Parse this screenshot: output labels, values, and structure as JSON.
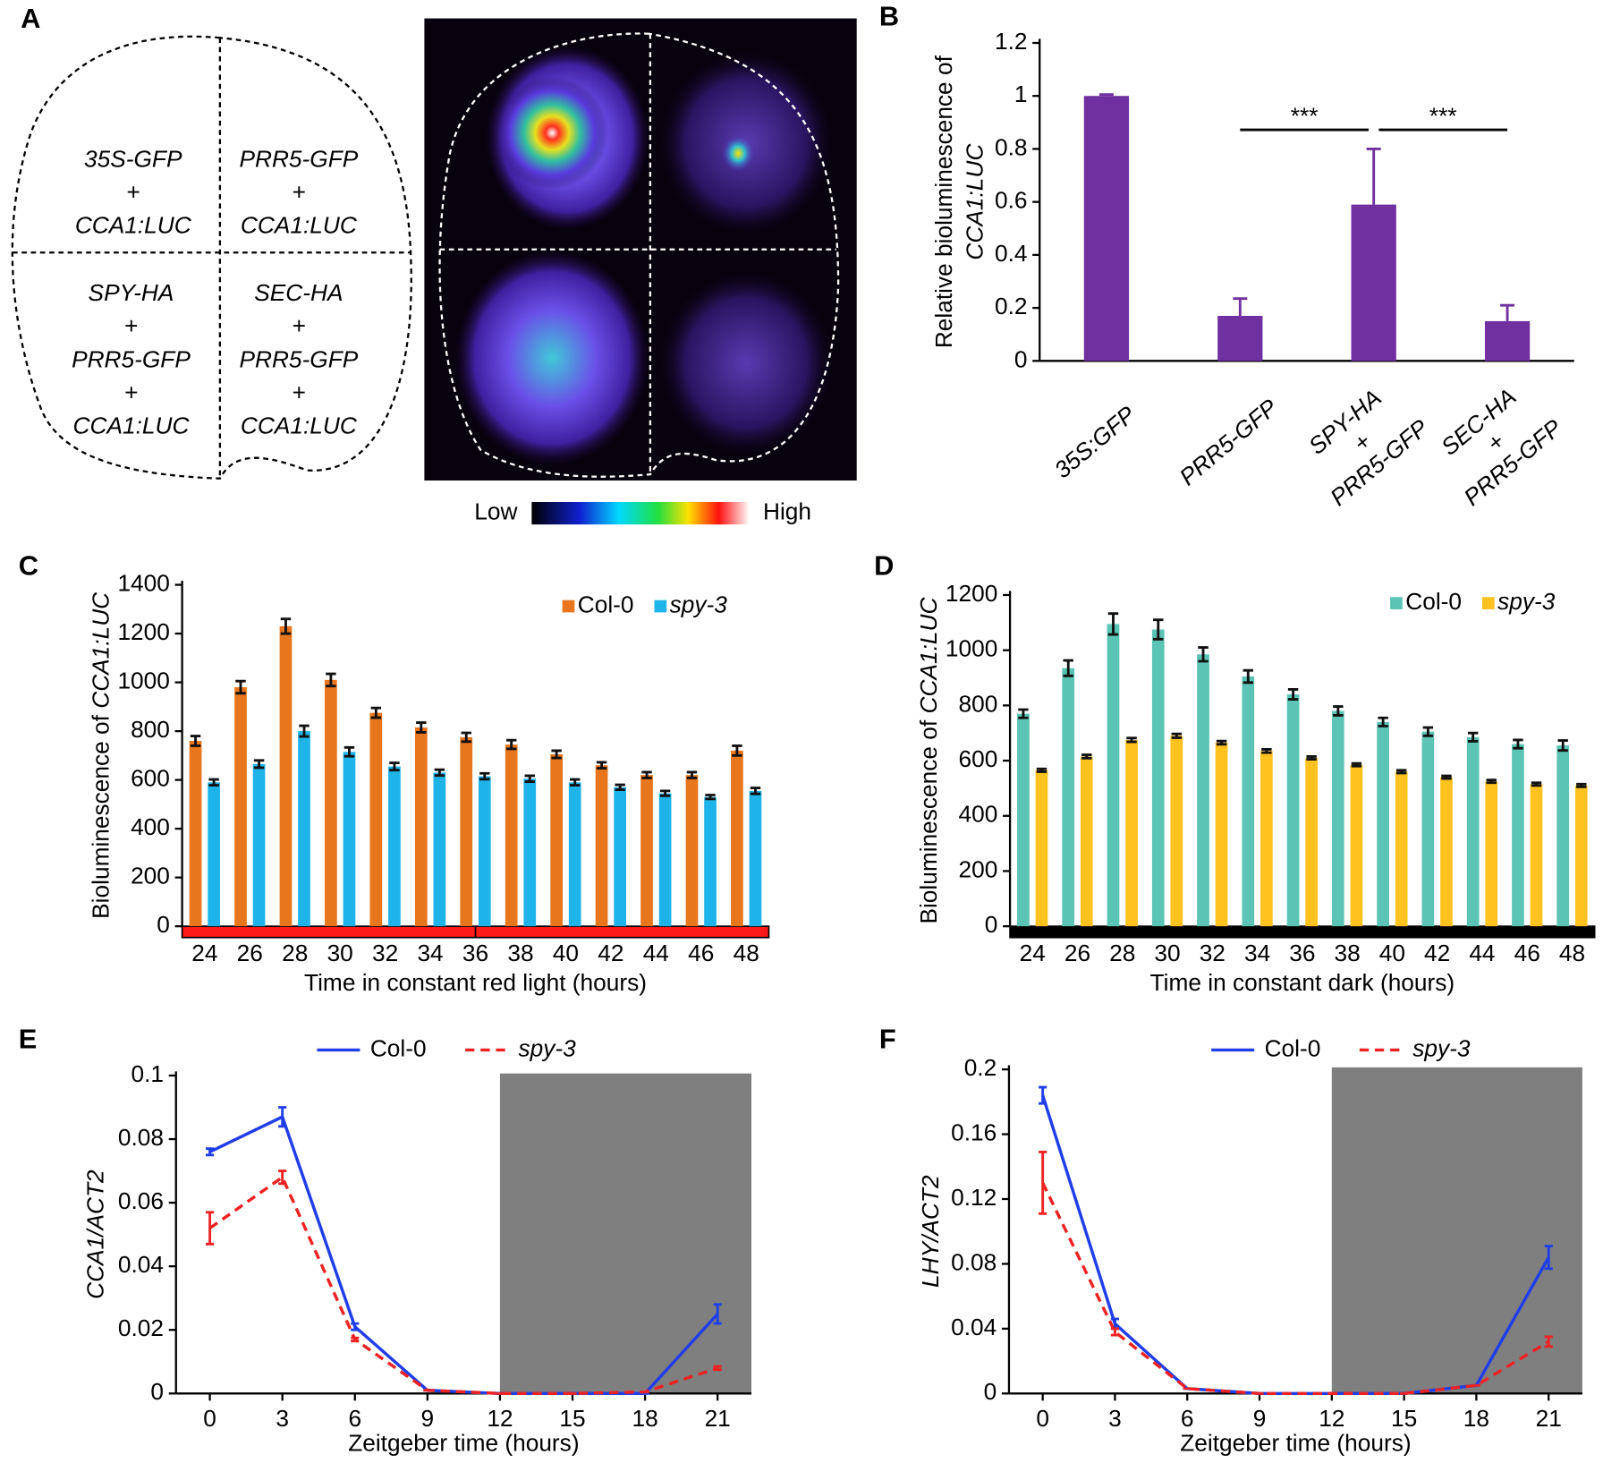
{
  "panel_labels": [
    "A",
    "B",
    "C",
    "D",
    "E",
    "F"
  ],
  "panel_a": {
    "cells": [
      [
        "35S-GFP",
        "+",
        "CCA1:LUC"
      ],
      [
        "PRR5-GFP",
        "+",
        "CCA1:LUC"
      ],
      [
        "SPY-HA",
        "+",
        "PRR5-GFP",
        "+",
        "CCA1:LUC"
      ],
      [
        "SEC-HA",
        "+",
        "PRR5-GFP",
        "+",
        "CCA1:LUC"
      ]
    ],
    "colorbar": {
      "low": "Low",
      "high": "High"
    }
  },
  "chart_data": [
    {
      "type": "bar",
      "y_label": [
        "Relative bioluminescence of",
        "CCA1:LUC"
      ],
      "categories": [
        [
          "35S:GFP"
        ],
        [
          "PRR5-GFP"
        ],
        [
          "SPY-HA",
          "+",
          "PRR5-GFP"
        ],
        [
          "SEC-HA",
          "+",
          "PRR5-GFP"
        ]
      ],
      "values": [
        1,
        0.17,
        0.59,
        0.15
      ],
      "errors": [
        0.005,
        0.065,
        0.21,
        0.06
      ],
      "color": "#7030a0",
      "ylim": [
        0,
        1.2
      ],
      "yticks": [
        0,
        0.2,
        0.4,
        0.6,
        0.8,
        1,
        1.2
      ],
      "annotations": [
        "***",
        "***"
      ]
    },
    {
      "type": "bar",
      "y_label": [
        "Bioluminescence of",
        "CCA1:LUC"
      ],
      "x_label": "Time in constant red light (hours)",
      "categories": [
        "24",
        "26",
        "28",
        "30",
        "32",
        "34",
        "36",
        "38",
        "40",
        "42",
        "44",
        "46",
        "48"
      ],
      "series": [
        {
          "name": "Col-0",
          "color": "#e8761c",
          "values": [
            760,
            980,
            1230,
            1010,
            875,
            815,
            775,
            745,
            705,
            660,
            620,
            620,
            720
          ],
          "errors": [
            20,
            25,
            30,
            25,
            20,
            20,
            18,
            18,
            15,
            12,
            12,
            12,
            20
          ]
        },
        {
          "name": "spy-3",
          "color": "#1eb4ea",
          "values": [
            590,
            665,
            800,
            715,
            655,
            630,
            615,
            605,
            590,
            570,
            545,
            530,
            555
          ],
          "errors": [
            12,
            15,
            22,
            18,
            15,
            12,
            12,
            12,
            12,
            10,
            10,
            8,
            12
          ]
        }
      ],
      "ylim": [
        0,
        1400
      ],
      "yticks": [
        0,
        200,
        400,
        600,
        800,
        1000,
        1200,
        1400
      ],
      "bottom_bar": "#ff1a1a"
    },
    {
      "type": "bar",
      "y_label": [
        "Bioluminescence of",
        "CCA1:LUC"
      ],
      "x_label": "Time in constant dark (hours)",
      "categories": [
        "24",
        "26",
        "28",
        "30",
        "32",
        "34",
        "36",
        "38",
        "40",
        "42",
        "44",
        "46",
        "48"
      ],
      "series": [
        {
          "name": "Col-0",
          "color": "#5bc4b4",
          "values": [
            770,
            935,
            1095,
            1075,
            985,
            905,
            840,
            780,
            740,
            705,
            685,
            660,
            655
          ],
          "errors": [
            15,
            28,
            38,
            35,
            25,
            22,
            18,
            16,
            15,
            15,
            15,
            15,
            18
          ]
        },
        {
          "name": "spy-3",
          "color": "#ffc21e",
          "values": [
            565,
            615,
            675,
            690,
            665,
            635,
            610,
            585,
            560,
            540,
            525,
            515,
            510
          ],
          "errors": [
            5,
            6,
            7,
            7,
            6,
            6,
            5,
            5,
            5,
            5,
            5,
            5,
            5
          ]
        }
      ],
      "ylim": [
        0,
        1200
      ],
      "yticks": [
        0,
        200,
        400,
        600,
        800,
        1000,
        1200
      ],
      "bottom_bar": "#000000"
    },
    {
      "type": "line",
      "y_label": "CCA1/ACT2",
      "x_label": "Zeitgeber time (hours)",
      "x": [
        0,
        3,
        6,
        9,
        12,
        15,
        18,
        21
      ],
      "series": [
        {
          "name": "Col-0",
          "color": "#1f3de8",
          "dash": false,
          "values": [
            0.076,
            0.087,
            0.021,
            0.001,
            0,
            0,
            0,
            0.025
          ],
          "errors": [
            0.001,
            0.003,
            0.001,
            0,
            0,
            0,
            0,
            0.003
          ]
        },
        {
          "name": "spy-3",
          "color": "#ee2222",
          "dash": true,
          "values": [
            0.052,
            0.068,
            0.017,
            0.001,
            0,
            0,
            0.0005,
            0.008
          ],
          "errors": [
            0.005,
            0.002,
            0.0005,
            0,
            0,
            0,
            0,
            0.0005
          ]
        }
      ],
      "xlim": [
        -1.4,
        22.4
      ],
      "xticks": [
        0,
        3,
        6,
        9,
        12,
        15,
        18,
        21
      ],
      "ylim": [
        0,
        0.1
      ],
      "yticks": [
        0,
        0.02,
        0.04,
        0.06,
        0.08,
        0.1
      ],
      "dark_period": [
        12,
        22.4
      ]
    },
    {
      "type": "line",
      "y_label": "LHY/ACT2",
      "x_label": "Zeitgeber time (hours)",
      "x": [
        0,
        3,
        6,
        9,
        12,
        15,
        18,
        21
      ],
      "series": [
        {
          "name": "Col-0",
          "color": "#1f3de8",
          "dash": false,
          "values": [
            0.184,
            0.043,
            0.003,
            0,
            0,
            0,
            0.005,
            0.084
          ],
          "errors": [
            0.005,
            0.003,
            0,
            0,
            0,
            0,
            0,
            0.007
          ]
        },
        {
          "name": "spy-3",
          "color": "#ee2222",
          "dash": true,
          "values": [
            0.13,
            0.038,
            0.003,
            0,
            0,
            0,
            0.005,
            0.032
          ],
          "errors": [
            0.019,
            0.002,
            0,
            0,
            0,
            0,
            0,
            0.003
          ]
        }
      ],
      "xlim": [
        -1.4,
        22.4
      ],
      "xticks": [
        0,
        3,
        6,
        9,
        12,
        15,
        18,
        21
      ],
      "ylim": [
        0,
        0.2
      ],
      "yticks": [
        0,
        0.04,
        0.08,
        0.12,
        0.16,
        0.2
      ],
      "dark_period": [
        12,
        22.4
      ]
    }
  ]
}
